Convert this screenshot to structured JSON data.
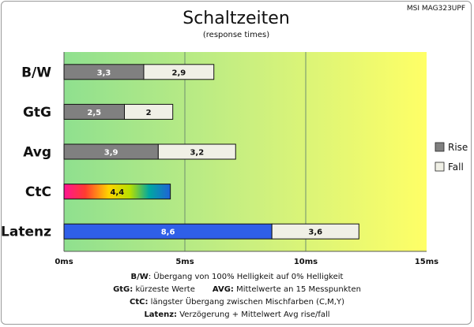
{
  "chart_data": {
    "type": "bar",
    "orientation": "horizontal",
    "stacked": true,
    "title": "Schaltzeiten",
    "subtitle": "(response times)",
    "model": "MSI MAG323UPF",
    "categories": [
      "B/W",
      "GtG",
      "Avg",
      "CtC",
      "Latenz"
    ],
    "series": [
      {
        "name": "Rise",
        "values": [
          3.3,
          2.5,
          3.9,
          null,
          null
        ],
        "color": "#808080"
      },
      {
        "name": "Fall",
        "values": [
          2.9,
          2,
          3.2,
          null,
          3.6
        ],
        "color": "#f0f0e6"
      }
    ],
    "extra_bars": [
      {
        "category": "CtC",
        "value": 4.4,
        "style": "rainbow"
      },
      {
        "category": "Latenz",
        "value": 8.6,
        "style": "blue"
      }
    ],
    "labels": {
      "B/W": [
        "3,3",
        "2,9"
      ],
      "GtG": [
        "2,5",
        "2"
      ],
      "Avg": [
        "3,9",
        "3,2"
      ],
      "CtC": [
        "4,4"
      ],
      "Latenz": [
        "8,6",
        "3,6"
      ]
    },
    "xlim": [
      0,
      15
    ],
    "xticks": [
      0,
      5,
      10,
      15
    ],
    "xtick_labels": [
      "0ms",
      "5ms",
      "10ms",
      "15ms"
    ],
    "grid": true,
    "legend_placement": "right",
    "background_gradient": [
      "#8fe08f",
      "#ffff66"
    ],
    "colors": {
      "latency_blue": "#2f5fe8",
      "rise": "#808080",
      "fall": "#f0f0e6"
    }
  },
  "notes": {
    "line1_key": "B/W",
    "line1_text": ":  Übergang von 100% Helligkeit auf 0% Helligkeit",
    "line2_key_a": "GtG:",
    "line2_text_a": " kürzeste  Werte",
    "line2_key_b": "AVG:",
    "line2_text_b": " Mittelwerte  an 15 Messpunkten",
    "line3_key": "CtC:",
    "line3_text": " längster Übergang  zwischen Mischfarben  (C,M,Y)",
    "line4_key": "Latenz:",
    "line4_text": " Verzögerung  + Mittelwert  Avg rise/fall"
  }
}
